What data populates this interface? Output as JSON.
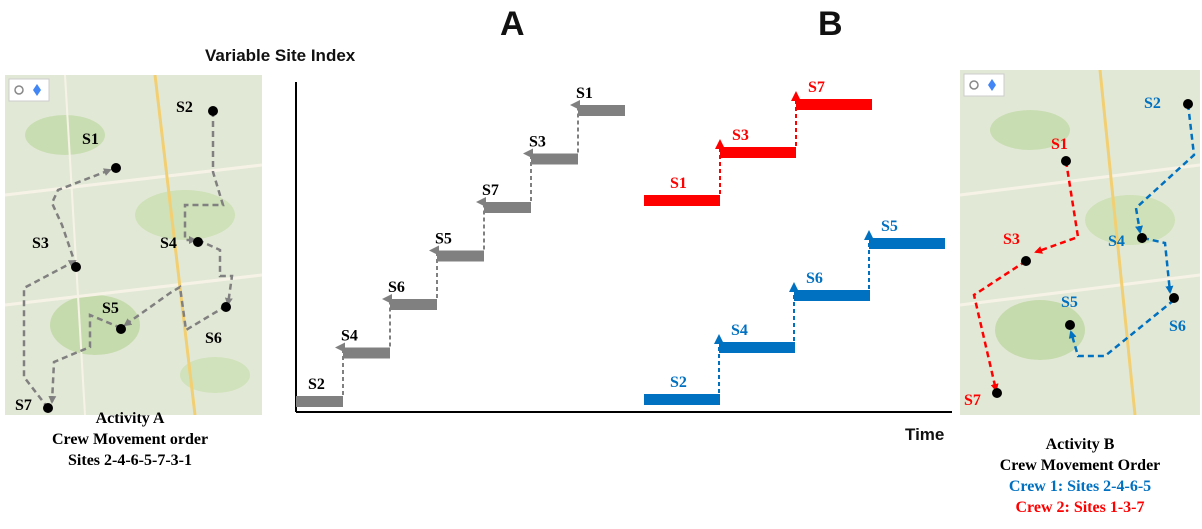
{
  "colors": {
    "gray": "#808080",
    "red": "#ff0000",
    "blue": "#0070c0",
    "black": "#000000"
  },
  "titles": {
    "panel_a": "A",
    "panel_b": "B",
    "y_axis": "Variable Site Index",
    "x_axis": "Time"
  },
  "left_map": {
    "sites": [
      "S1",
      "S2",
      "S3",
      "S4",
      "S5",
      "S6",
      "S7"
    ],
    "caption_line1": "Activity A",
    "caption_line2": "Crew Movement order",
    "caption_line3": "Sites 2-4-6-5-7-3-1"
  },
  "right_map": {
    "sites": [
      "S1",
      "S2",
      "S3",
      "S4",
      "S5",
      "S6",
      "S7"
    ],
    "caption_line1": "Activity B",
    "caption_line2": "Crew Movement Order",
    "caption_line3": "Crew 1: Sites 2-4-6-5",
    "caption_line4": "Crew 2: Sites 1-3-7"
  },
  "chart_data": {
    "type": "line",
    "xlabel": "Time",
    "ylabel": "Variable Site Index",
    "series": [
      {
        "name": "Activity A",
        "sequence": [
          "S2",
          "S4",
          "S6",
          "S5",
          "S7",
          "S3",
          "S1"
        ],
        "color": "#808080"
      },
      {
        "name": "Activity B Crew 2",
        "sequence": [
          "S1",
          "S3",
          "S7"
        ],
        "color": "#ff0000"
      },
      {
        "name": "Activity B Crew 1",
        "sequence": [
          "S2",
          "S4",
          "S6",
          "S5"
        ],
        "color": "#0070c0"
      }
    ]
  }
}
